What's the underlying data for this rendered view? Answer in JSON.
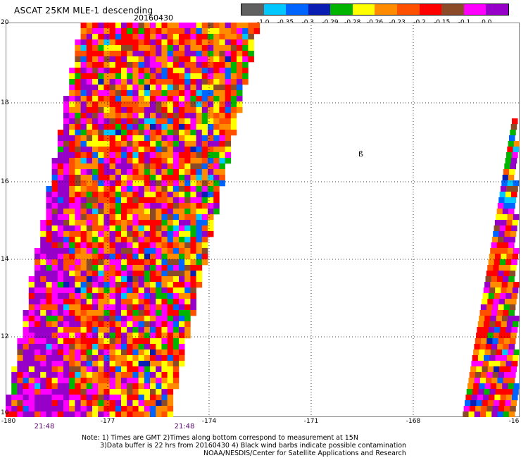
{
  "header": {
    "title": "ASCAT 25KM MLE-1 descending",
    "date": "20160430"
  },
  "colorbar": {
    "colors": [
      "#606060",
      "#00c8ff",
      "#0064ff",
      "#0a1eb4",
      "#00b400",
      "#ffff00",
      "#ff8c00",
      "#ff5000",
      "#ff0000",
      "#8b4a28",
      "#ff00ff",
      "#9600c8"
    ],
    "labels": [
      "-1.0",
      "-0.35",
      "-0.3",
      "-0.29",
      "-0.28",
      "-0.26",
      "-0.23",
      "-0.2",
      "-0.15",
      "-0.1",
      "0.0"
    ]
  },
  "axes": {
    "lat_labels": [
      "20",
      "18",
      "16",
      "14",
      "12",
      "10"
    ],
    "lon_labels": [
      "-180",
      "-177",
      "-174",
      "-171",
      "-168",
      "-16"
    ]
  },
  "times": [
    "21:48",
    "21:48"
  ],
  "glyph": "ß",
  "footer": {
    "line1": "Note: 1) Times are GMT 2)Times along bottom correspond to measurement at 15N",
    "line2": "3)Data buffer is 22 hrs from 20160430 4) Black wind barbs indicate possible contamination",
    "line3": "NOAA/NESDIS/Center for Satellite Applications and Research"
  }
}
